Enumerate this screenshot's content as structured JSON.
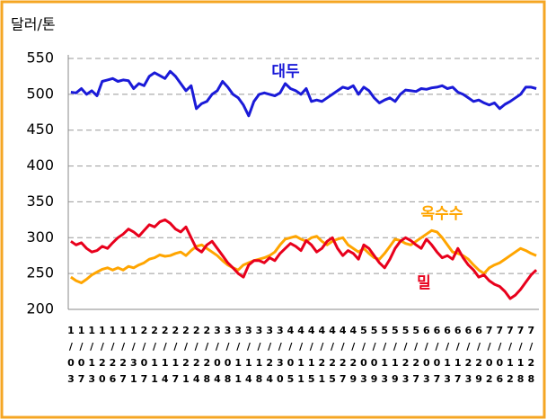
{
  "chart_data": {
    "type": "line",
    "y_label": "달러/톤",
    "ylim": [
      200,
      550
    ],
    "yticks": [
      200,
      250,
      300,
      350,
      400,
      450,
      500,
      550
    ],
    "grid": true,
    "categories": [
      "1/03",
      null,
      "1/07",
      null,
      "1/13",
      null,
      "1/20",
      null,
      "1/26",
      null,
      "1/27",
      null,
      "1/31",
      null,
      "2/07",
      null,
      "2/11",
      null,
      "2/14",
      null,
      "2/17",
      null,
      "2/21",
      null,
      "2/24",
      null,
      "2/28",
      null,
      "3/04",
      null,
      "3/08",
      null,
      "3/11",
      null,
      "3/14",
      null,
      "3/18",
      null,
      "3/24",
      null,
      "3/30",
      null,
      "4/05",
      null,
      "4/11",
      null,
      "4/15",
      null,
      "4/21",
      null,
      "4/25",
      null,
      "4/27",
      null,
      "4/29",
      null,
      "5/03",
      null,
      "5/09",
      null,
      "5/13",
      null,
      "5/19",
      null,
      "5/23",
      null,
      "5/27",
      null,
      "6/03",
      null,
      "6/07",
      null,
      "6/13",
      null,
      "6/17",
      null,
      "6/23",
      null,
      "6/29",
      null,
      "7/02",
      null,
      "7/06",
      null,
      "7/12",
      null,
      "7/18",
      null,
      "7/28",
      null
    ],
    "series": [
      {
        "name": "대두",
        "color": "#1a1ad8",
        "values": [
          503,
          502,
          508,
          500,
          505,
          498,
          518,
          520,
          522,
          518,
          520,
          519,
          508,
          515,
          512,
          525,
          530,
          526,
          522,
          532,
          525,
          515,
          505,
          512,
          480,
          487,
          490,
          500,
          505,
          518,
          510,
          500,
          495,
          485,
          470,
          490,
          500,
          502,
          500,
          498,
          502,
          515,
          508,
          505,
          500,
          508,
          490,
          492,
          490,
          495,
          500,
          505,
          510,
          508,
          512,
          500,
          510,
          505,
          495,
          488,
          492,
          495,
          490,
          500,
          506,
          505,
          504,
          508,
          507,
          509,
          510,
          512,
          508,
          510,
          503,
          500,
          495,
          490,
          492,
          488,
          485,
          488,
          480,
          486,
          490,
          495,
          500,
          510,
          510,
          508
        ]
      },
      {
        "name": "옥수수",
        "color": "#ffa500",
        "values": [
          245,
          240,
          237,
          242,
          248,
          252,
          256,
          258,
          255,
          258,
          255,
          260,
          258,
          262,
          265,
          270,
          272,
          276,
          274,
          275,
          278,
          280,
          275,
          282,
          288,
          290,
          285,
          280,
          275,
          268,
          262,
          258,
          255,
          262,
          265,
          268,
          270,
          272,
          275,
          280,
          290,
          298,
          300,
          302,
          298,
          295,
          300,
          302,
          295,
          290,
          295,
          298,
          300,
          290,
          285,
          280,
          285,
          278,
          272,
          270,
          278,
          288,
          298,
          296,
          292,
          290,
          295,
          300,
          305,
          310,
          308,
          300,
          290,
          280,
          278,
          275,
          270,
          262,
          255,
          250,
          258,
          262,
          265,
          270,
          275,
          280,
          285,
          282,
          278,
          275
        ]
      },
      {
        "name": "밀",
        "color": "#e8001c",
        "values": [
          295,
          290,
          293,
          285,
          280,
          282,
          288,
          285,
          293,
          300,
          305,
          312,
          308,
          302,
          310,
          318,
          315,
          322,
          325,
          320,
          312,
          308,
          315,
          300,
          285,
          280,
          290,
          295,
          285,
          275,
          265,
          258,
          250,
          245,
          262,
          268,
          268,
          265,
          272,
          268,
          278,
          285,
          292,
          288,
          282,
          296,
          290,
          280,
          285,
          295,
          300,
          285,
          275,
          282,
          278,
          270,
          290,
          285,
          275,
          265,
          258,
          270,
          285,
          295,
          300,
          296,
          290,
          285,
          298,
          290,
          280,
          272,
          275,
          270,
          285,
          272,
          262,
          255,
          245,
          248,
          240,
          235,
          232,
          225,
          215,
          220,
          228,
          238,
          248,
          255
        ]
      }
    ]
  }
}
